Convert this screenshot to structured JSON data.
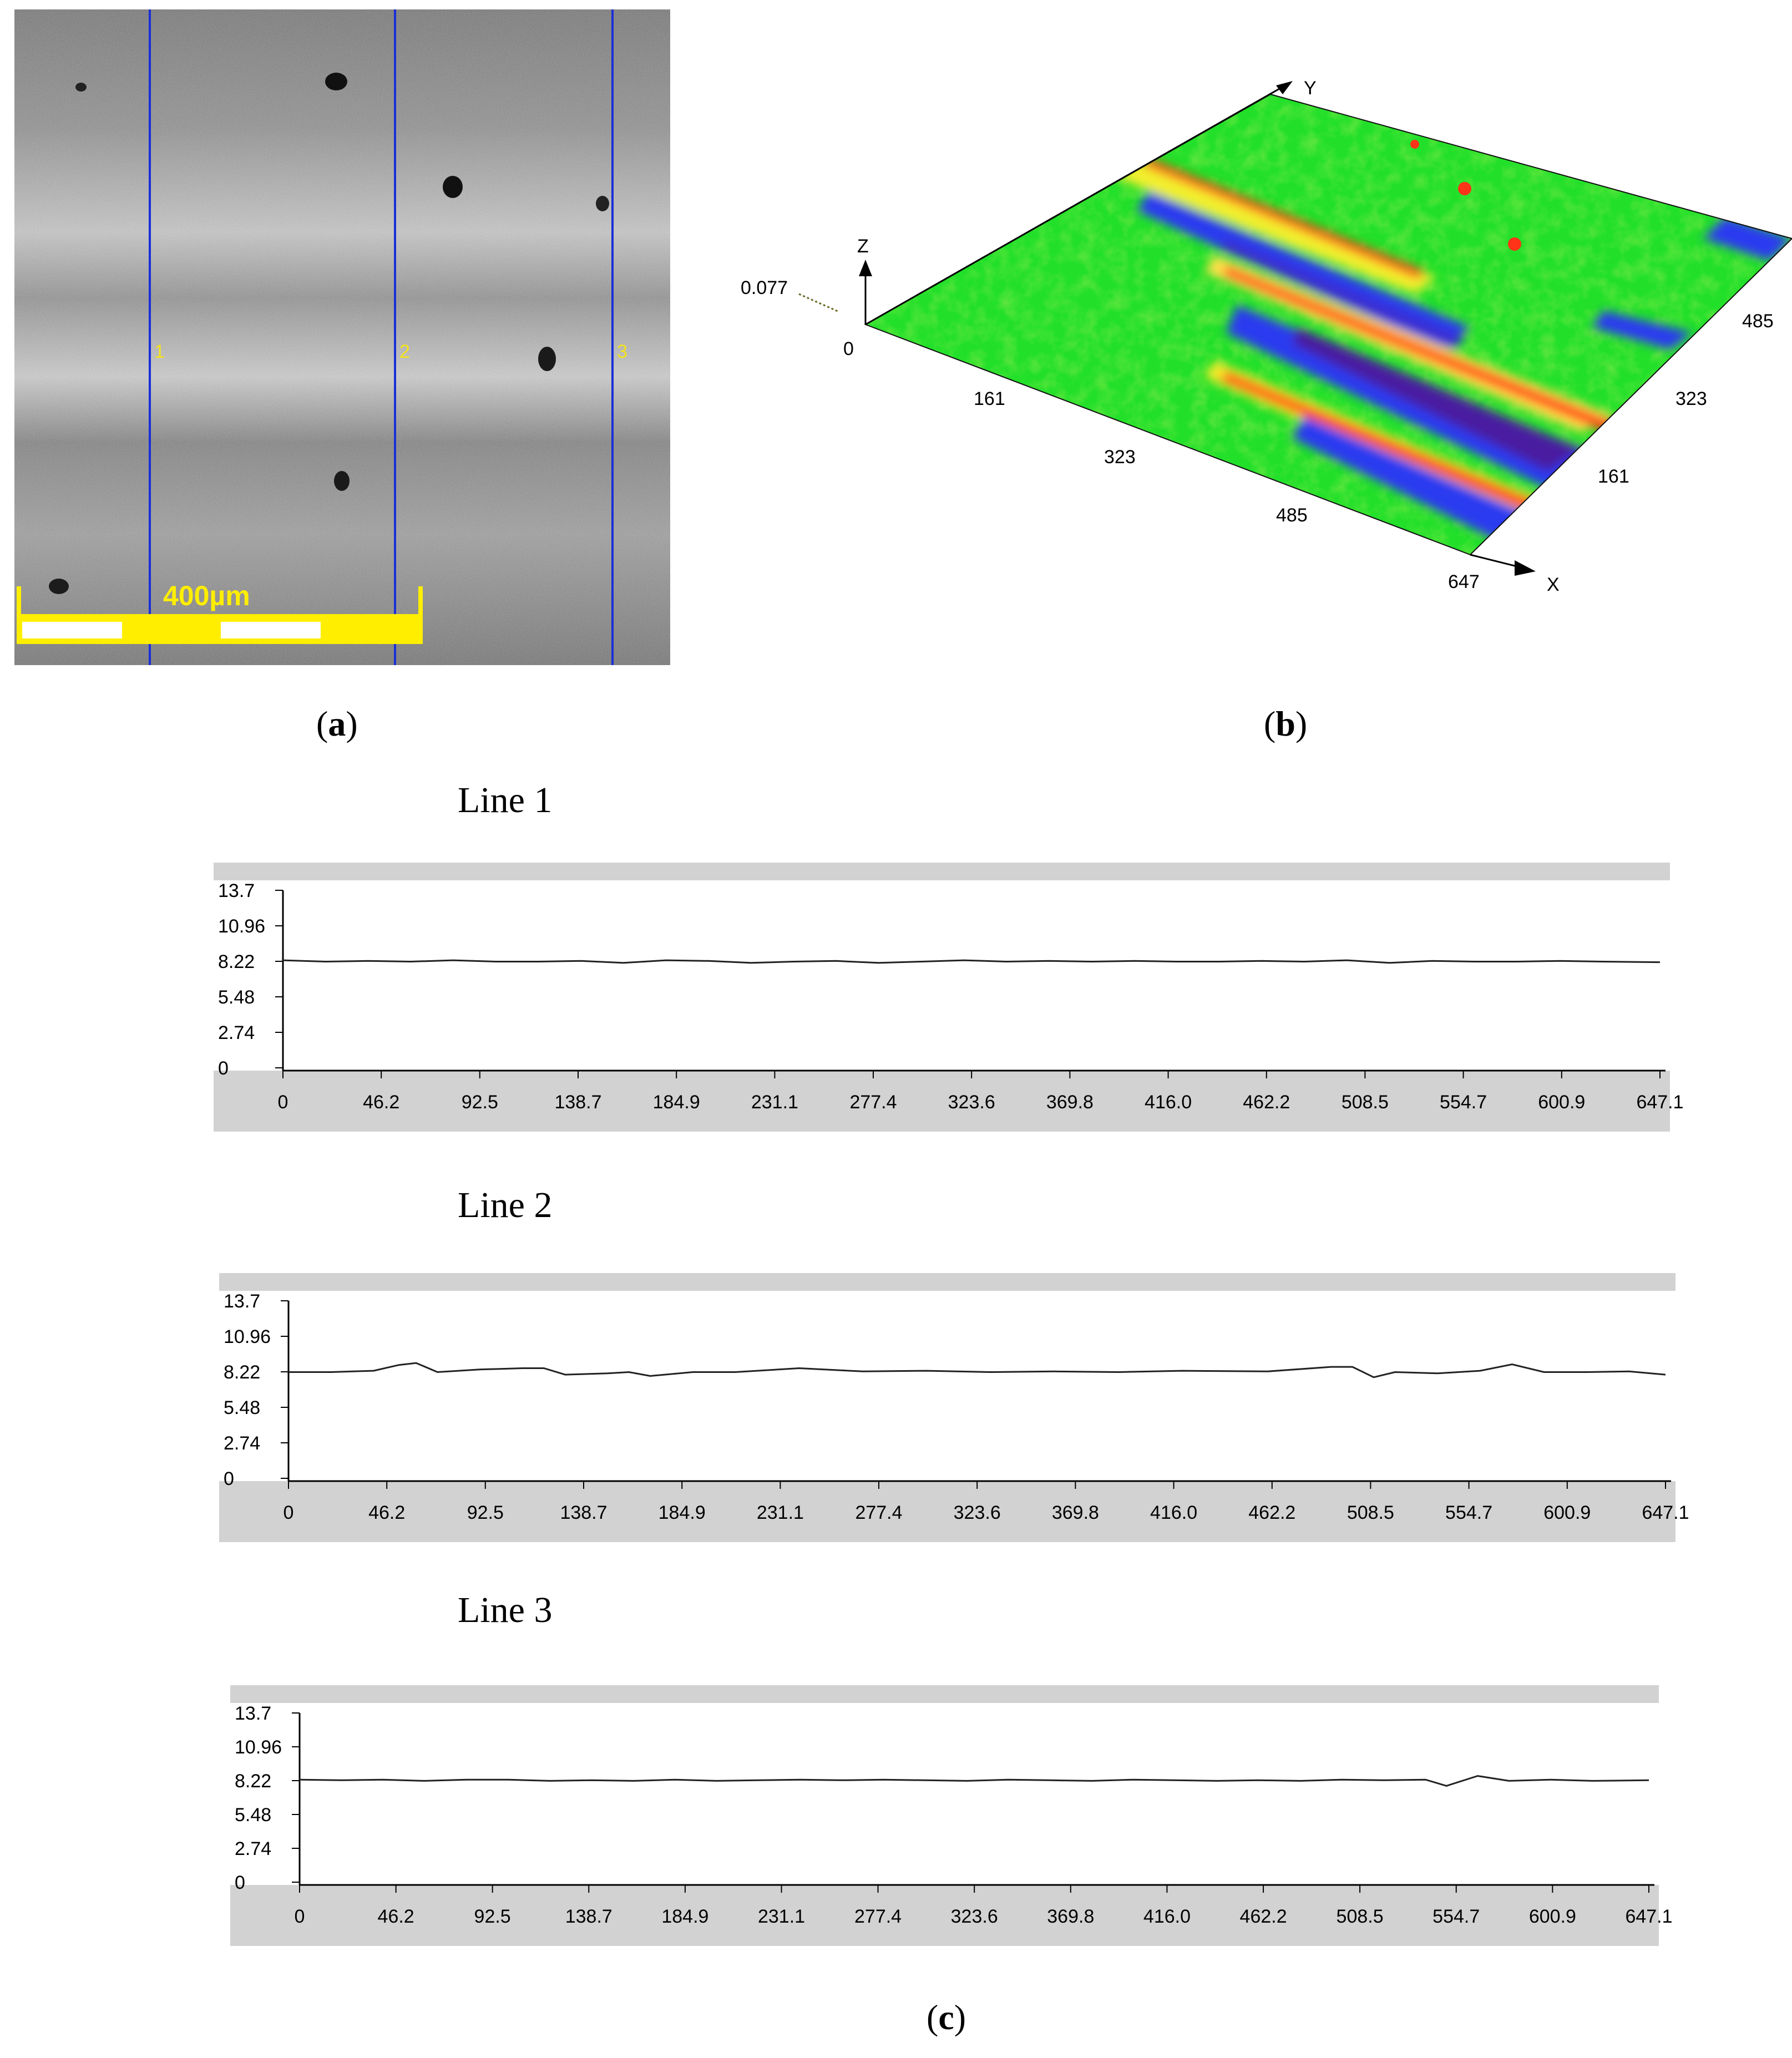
{
  "panel_a": {
    "label": "a",
    "scale_bar": "400µm",
    "line_markers": [
      "1",
      "2",
      "3"
    ]
  },
  "panel_b": {
    "label": "b",
    "z_value": "0.077",
    "axis_z": "Z",
    "axis_y": "Y",
    "axis_x": "X",
    "origin": "0",
    "x_ticks": [
      "161",
      "323",
      "485",
      "647"
    ],
    "y_ticks": [
      "161",
      "323",
      "485"
    ]
  },
  "panel_c": {
    "label": "c"
  },
  "chart_data": [
    {
      "type": "line",
      "title": "Line 1",
      "x_ticks": [
        "0",
        "46.2",
        "92.5",
        "138.7",
        "184.9",
        "231.1",
        "277.4",
        "323.6",
        "369.8",
        "416.0",
        "462.2",
        "508.5",
        "554.7",
        "600.9",
        "647.1"
      ],
      "y_ticks": [
        "0",
        "2.74",
        "5.48",
        "8.22",
        "10.96",
        "13.7"
      ],
      "xlim": [
        0,
        647.1
      ],
      "ylim": [
        0,
        13.7
      ],
      "x": [
        0,
        20,
        40,
        60,
        80,
        100,
        120,
        140,
        160,
        180,
        200,
        220,
        240,
        260,
        280,
        300,
        320,
        340,
        360,
        380,
        400,
        420,
        440,
        460,
        480,
        500,
        520,
        540,
        560,
        580,
        600,
        620,
        647.1
      ],
      "y": [
        8.3,
        8.2,
        8.25,
        8.2,
        8.3,
        8.2,
        8.2,
        8.25,
        8.1,
        8.3,
        8.25,
        8.1,
        8.2,
        8.25,
        8.1,
        8.2,
        8.3,
        8.2,
        8.25,
        8.2,
        8.25,
        8.2,
        8.2,
        8.25,
        8.2,
        8.3,
        8.1,
        8.25,
        8.2,
        8.2,
        8.25,
        8.2,
        8.15
      ]
    },
    {
      "type": "line",
      "title": "Line 2",
      "x_ticks": [
        "0",
        "46.2",
        "92.5",
        "138.7",
        "184.9",
        "231.1",
        "277.4",
        "323.6",
        "369.8",
        "416.0",
        "462.2",
        "508.5",
        "554.7",
        "600.9",
        "647.1"
      ],
      "y_ticks": [
        "0",
        "2.74",
        "5.48",
        "8.22",
        "10.96",
        "13.7"
      ],
      "xlim": [
        0,
        647.1
      ],
      "ylim": [
        0,
        13.7
      ],
      "x": [
        0,
        20,
        40,
        52,
        60,
        70,
        90,
        110,
        120,
        130,
        150,
        160,
        170,
        190,
        210,
        240,
        270,
        300,
        330,
        360,
        390,
        420,
        460,
        490,
        500,
        510,
        520,
        540,
        560,
        575,
        590,
        610,
        630,
        647.1
      ],
      "y": [
        8.2,
        8.2,
        8.3,
        8.75,
        8.9,
        8.2,
        8.4,
        8.5,
        8.5,
        8.0,
        8.1,
        8.2,
        7.9,
        8.2,
        8.2,
        8.5,
        8.25,
        8.3,
        8.2,
        8.25,
        8.2,
        8.3,
        8.25,
        8.6,
        8.6,
        7.8,
        8.2,
        8.1,
        8.3,
        8.8,
        8.2,
        8.2,
        8.25,
        8.0
      ]
    },
    {
      "type": "line",
      "title": "Line 3",
      "x_ticks": [
        "0",
        "46.2",
        "92.5",
        "138.7",
        "184.9",
        "231.1",
        "277.4",
        "323.6",
        "369.8",
        "416.0",
        "462.2",
        "508.5",
        "554.7",
        "600.9",
        "647.1"
      ],
      "y_ticks": [
        "0",
        "2.74",
        "5.48",
        "8.22",
        "10.96",
        "13.7"
      ],
      "xlim": [
        0,
        647.1
      ],
      "ylim": [
        0,
        13.7
      ],
      "x": [
        0,
        20,
        40,
        60,
        80,
        100,
        120,
        140,
        160,
        180,
        200,
        220,
        240,
        260,
        280,
        300,
        320,
        340,
        360,
        380,
        400,
        420,
        440,
        460,
        480,
        500,
        520,
        540,
        550,
        565,
        580,
        600,
        620,
        647.1
      ],
      "y": [
        8.3,
        8.25,
        8.3,
        8.2,
        8.3,
        8.3,
        8.2,
        8.25,
        8.2,
        8.3,
        8.2,
        8.25,
        8.3,
        8.25,
        8.3,
        8.25,
        8.2,
        8.3,
        8.25,
        8.2,
        8.3,
        8.25,
        8.2,
        8.25,
        8.2,
        8.3,
        8.25,
        8.3,
        7.8,
        8.6,
        8.2,
        8.3,
        8.2,
        8.25
      ]
    }
  ]
}
